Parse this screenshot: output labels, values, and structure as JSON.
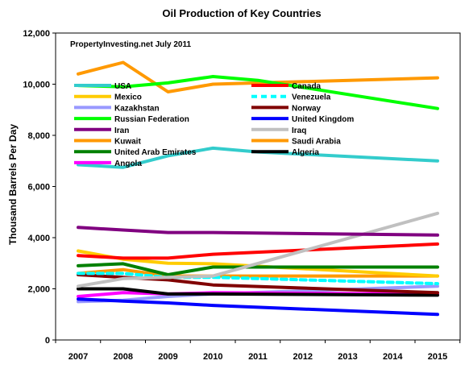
{
  "chart_data": {
    "type": "line",
    "title": "Oil Production of Key Countries",
    "annotation": "PropertyInvesting.net  July 2011",
    "xlabel": "",
    "ylabel": "Thousand Barrels Per Day",
    "x": [
      2007,
      2008,
      2009,
      2010,
      2011,
      2012,
      2013,
      2014,
      2015
    ],
    "x_tick_labels": [
      "2007",
      "2008",
      "2009",
      "2010",
      "2011",
      "2012",
      "2013",
      "2014",
      "2015"
    ],
    "ylim": [
      0,
      12000
    ],
    "y_ticks": [
      0,
      2000,
      4000,
      6000,
      8000,
      10000,
      12000
    ],
    "y_tick_labels": [
      "0",
      "2,000",
      "4,000",
      "6,000",
      "8,000",
      "10,000",
      "12,000"
    ],
    "grid": false,
    "legend_placement": "inside top, two columns",
    "series": [
      {
        "name": "USA",
        "color": "#33cccc",
        "dashed": false,
        "x": [
          2007,
          2008,
          2009,
          2010,
          2011,
          2015
        ],
        "values": [
          6850,
          6750,
          7200,
          7500,
          7350,
          7000
        ]
      },
      {
        "name": "Canada",
        "color": "#ff0000",
        "dashed": false,
        "x": [
          2007,
          2008,
          2009,
          2010,
          2015
        ],
        "values": [
          3300,
          3200,
          3200,
          3350,
          3750
        ]
      },
      {
        "name": "Mexico",
        "color": "#ffcc00",
        "dashed": false,
        "x": [
          2007,
          2008,
          2009,
          2010,
          2015
        ],
        "values": [
          3480,
          3160,
          3000,
          2980,
          2500
        ]
      },
      {
        "name": "Venezuela",
        "color": "#00ffff",
        "dashed": true,
        "x": [
          2007,
          2008,
          2009,
          2010,
          2015
        ],
        "values": [
          2600,
          2600,
          2450,
          2450,
          2200
        ]
      },
      {
        "name": "Kazakhstan",
        "color": "#9999ff",
        "dashed": false,
        "x": [
          2007,
          2008,
          2009,
          2010,
          2015
        ],
        "values": [
          1500,
          1550,
          1700,
          1800,
          2100
        ]
      },
      {
        "name": "Norway",
        "color": "#800000",
        "dashed": false,
        "x": [
          2007,
          2008,
          2009,
          2010,
          2015
        ],
        "values": [
          2550,
          2450,
          2350,
          2150,
          1850
        ]
      },
      {
        "name": "Russian Federation",
        "color": "#00ff00",
        "dashed": false,
        "x": [
          2007,
          2008,
          2009,
          2010,
          2011,
          2015
        ],
        "values": [
          9950,
          9900,
          10050,
          10300,
          10150,
          9050
        ]
      },
      {
        "name": "United Kingdom",
        "color": "#0000ff",
        "dashed": false,
        "x": [
          2007,
          2008,
          2009,
          2010,
          2015
        ],
        "values": [
          1600,
          1520,
          1450,
          1350,
          1000
        ]
      },
      {
        "name": "Iran",
        "color": "#800080",
        "dashed": false,
        "x": [
          2007,
          2008,
          2009,
          2010,
          2015
        ],
        "values": [
          4400,
          4300,
          4200,
          4200,
          4100
        ]
      },
      {
        "name": "Iraq",
        "color": "#c0c0c0",
        "dashed": false,
        "x": [
          2007,
          2008,
          2009,
          2010,
          2015
        ],
        "values": [
          2100,
          2400,
          2450,
          2500,
          4950
        ]
      },
      {
        "name": "Kuwait",
        "color": "#ff9900",
        "dashed": false,
        "x": [
          2007,
          2008,
          2009,
          2010,
          2015
        ],
        "values": [
          2600,
          2750,
          2500,
          2500,
          2500
        ]
      },
      {
        "name": "Saudi Arabia",
        "color": "#ff9900",
        "dashed": false,
        "x": [
          2007,
          2008,
          2009,
          2010,
          2015
        ],
        "values": [
          10400,
          10850,
          9700,
          10000,
          10250
        ]
      },
      {
        "name": "United Arab Emirates",
        "color": "#008000",
        "dashed": false,
        "x": [
          2007,
          2008,
          2009,
          2010,
          2015
        ],
        "values": [
          2900,
          2980,
          2550,
          2850,
          2850
        ]
      },
      {
        "name": "Algeria",
        "color": "#000000",
        "dashed": false,
        "x": [
          2007,
          2008,
          2009,
          2010,
          2015
        ],
        "values": [
          2000,
          2000,
          1800,
          1800,
          1750
        ]
      },
      {
        "name": "Angola",
        "color": "#ff00ff",
        "dashed": false,
        "x": [
          2007,
          2008,
          2009,
          2010,
          2015
        ],
        "values": [
          1700,
          1850,
          1800,
          1850,
          1800
        ]
      }
    ]
  }
}
